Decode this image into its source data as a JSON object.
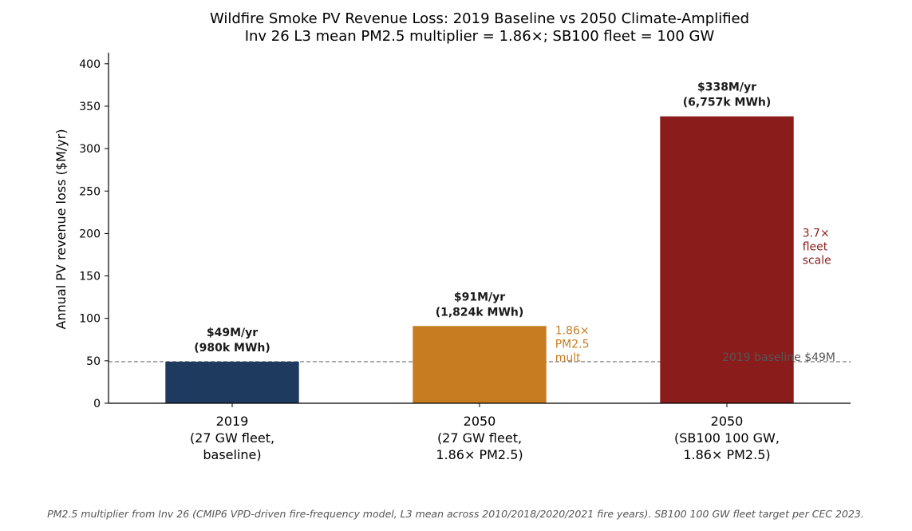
{
  "colors": {
    "bar_2019": "#1f3a5f",
    "bar_2050_pm": "#c77c20",
    "bar_2050_fleet": "#8b1c1c",
    "baseline_line": "#888888",
    "axis": "#000000"
  },
  "chart_data": {
    "type": "bar",
    "title": "Wildfire Smoke PV Revenue Loss: 2019 Baseline vs 2050 Climate-Amplified",
    "subtitle": "Inv 26 L3 mean PM2.5 multiplier = 1.86×; SB100 fleet = 100 GW",
    "ylabel": "Annual PV revenue loss ($M/yr)",
    "xlabel": "",
    "ylim": [
      0,
      413
    ],
    "yticks": [
      "0",
      "50",
      "100",
      "150",
      "200",
      "250",
      "300",
      "350",
      "400"
    ],
    "grid": false,
    "categories": [
      [
        "2019",
        "(27 GW fleet,",
        "baseline)"
      ],
      [
        "2050",
        "(27 GW fleet,",
        "1.86× PM2.5)"
      ],
      [
        "2050",
        "(SB100 100 GW,",
        "1.86× PM2.5)"
      ]
    ],
    "values": [
      49,
      91,
      338
    ],
    "data_labels": [
      [
        "$49M/yr",
        "(980k MWh)"
      ],
      [
        "$91M/yr",
        "(1,824k MWh)"
      ],
      [
        "$338M/yr",
        "(6,757k MWh)"
      ]
    ],
    "bar_annotations": [
      {
        "bar": 1,
        "lines": [
          "1.86×",
          "PM2.5",
          "mult"
        ]
      },
      {
        "bar": 2,
        "lines": [
          "3.7×",
          "fleet",
          "scale"
        ]
      }
    ],
    "baseline": {
      "value": 49,
      "label": "2019 baseline $49M"
    }
  },
  "footnote": "PM2.5 multiplier from Inv 26 (CMIP6 VPD-driven fire-frequency model, L3 mean across 2010/2018/2020/2021 fire years). SB100 100 GW fleet target per CEC 2023."
}
